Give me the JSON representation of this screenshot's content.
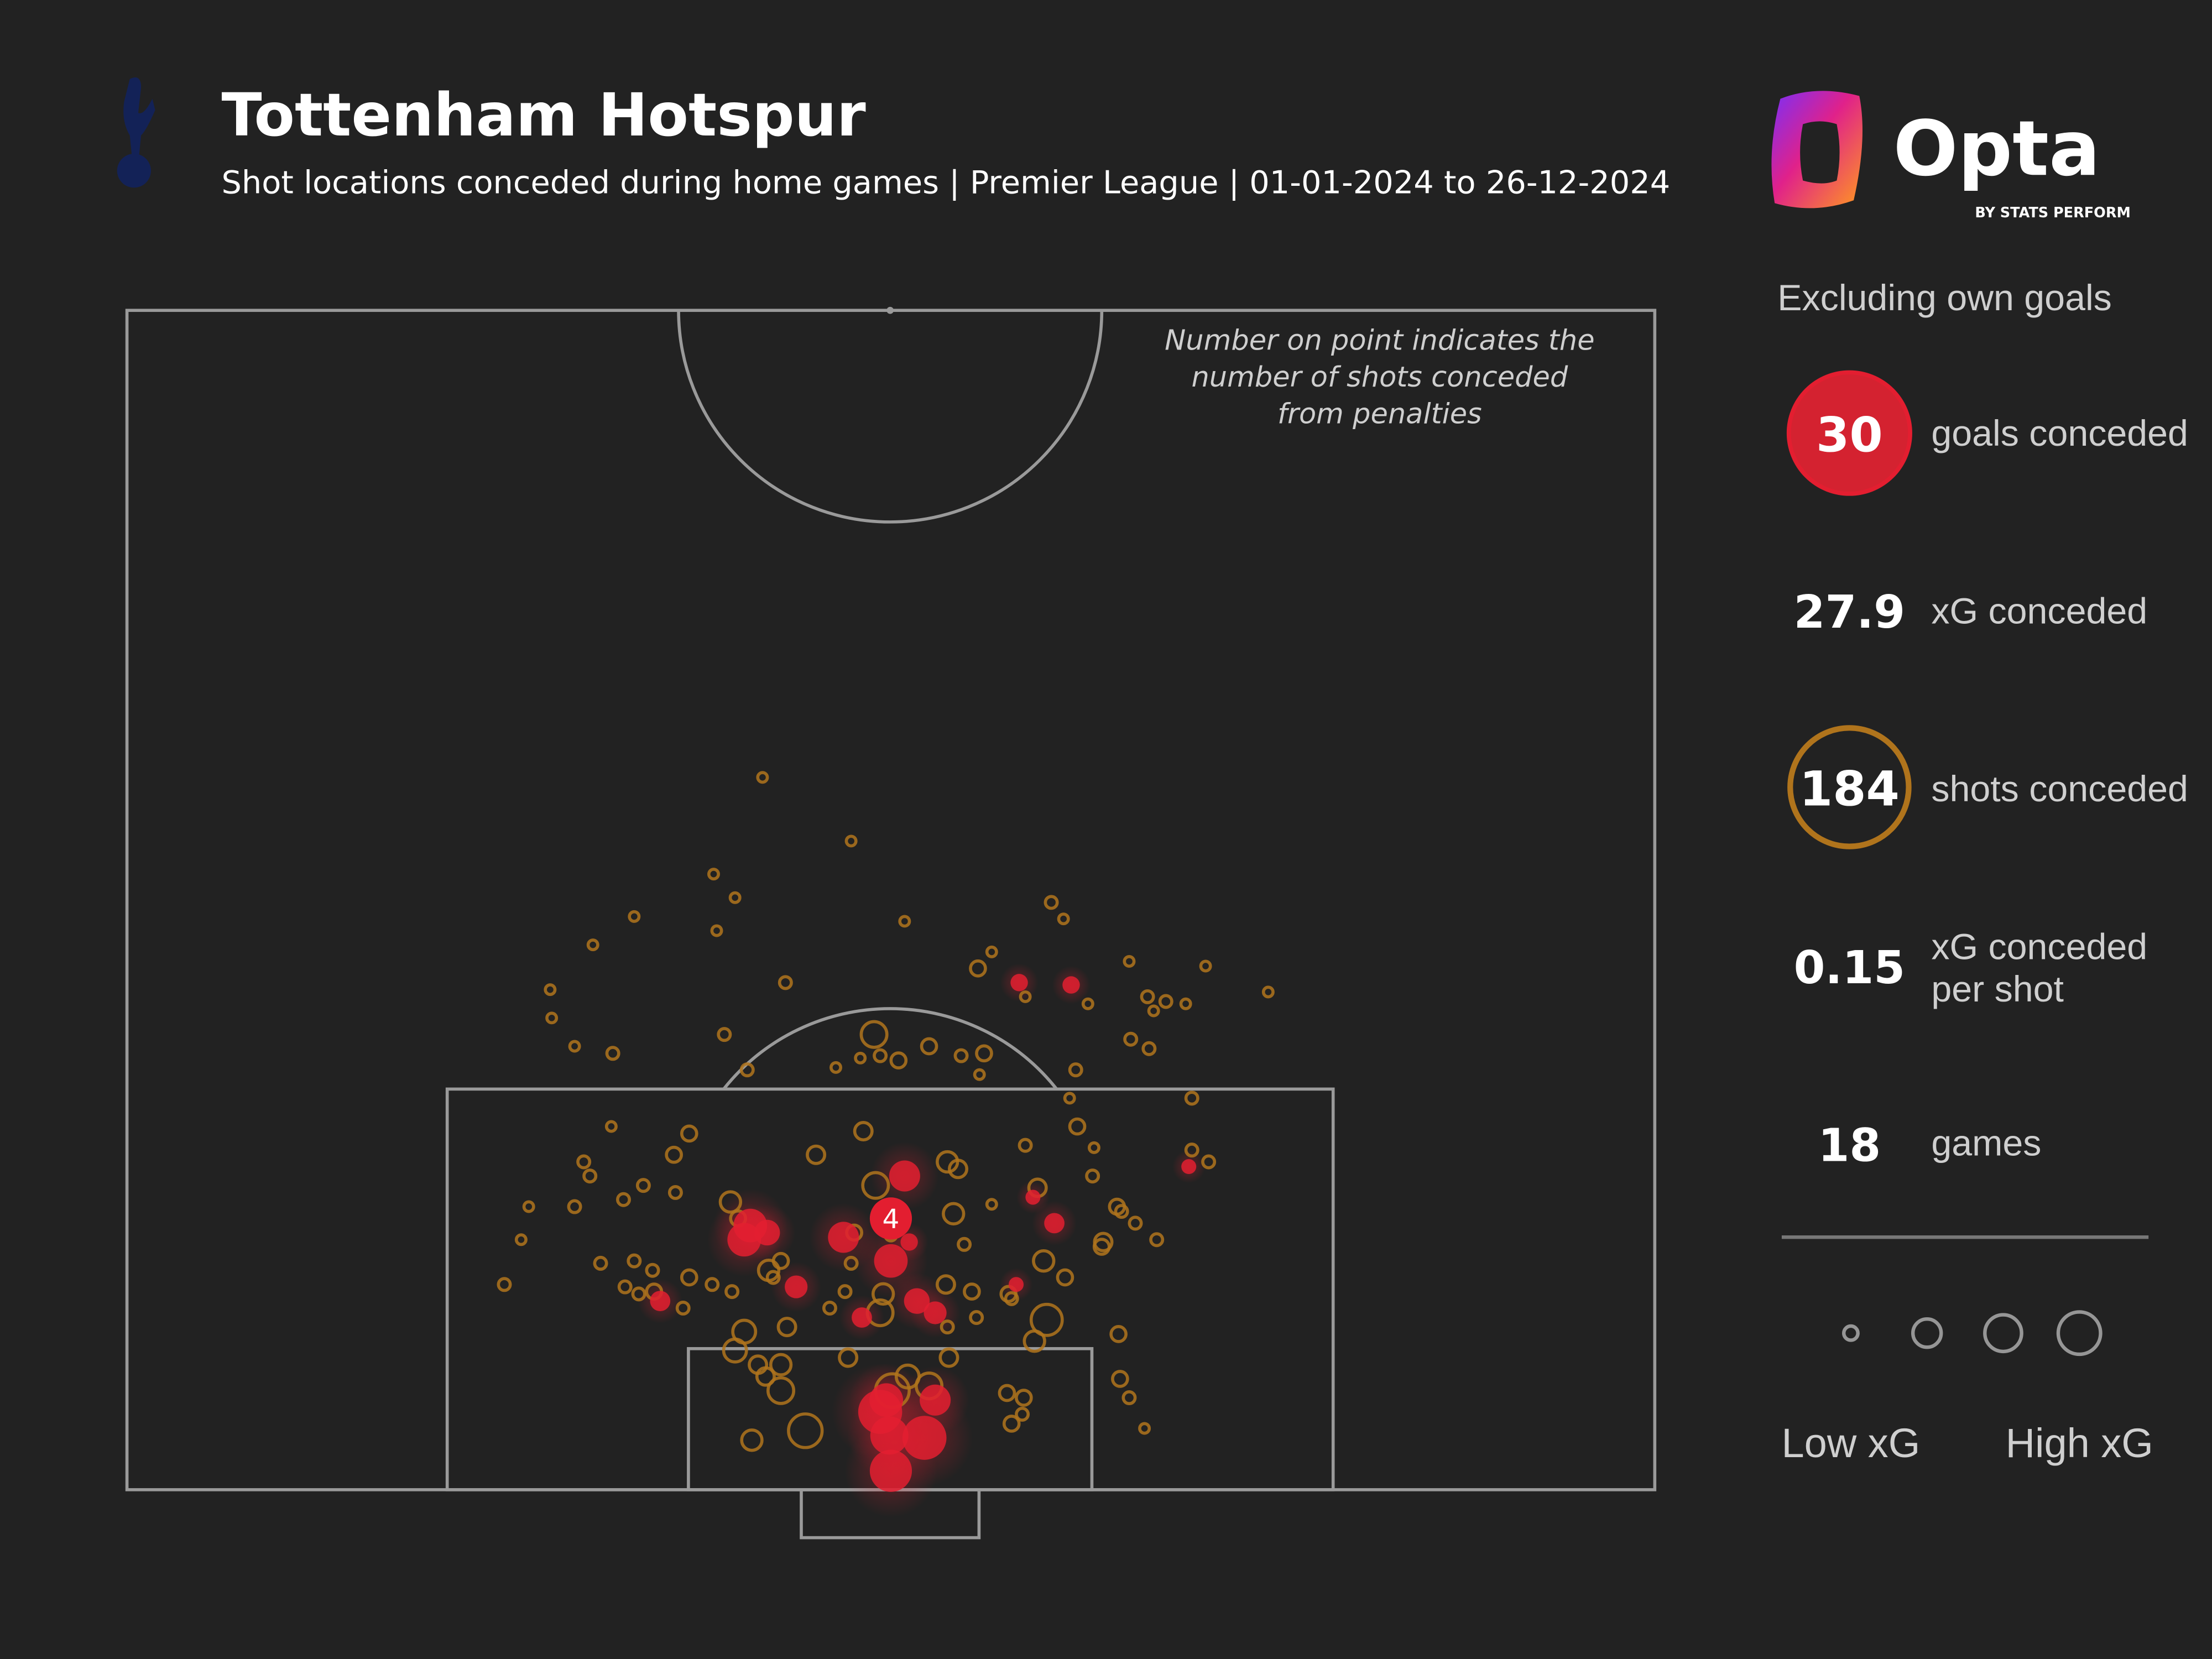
{
  "header": {
    "title": "Tottenham Hotspur",
    "subtitle": "Shot locations conceded during home games | Premier League | 01-01-2024 to 26-12-2024",
    "club_crest": "tottenham-cockerel-crest",
    "brand_logo": {
      "word": "Opta",
      "tagline": "BY STATS PERFORM"
    }
  },
  "annotation": [
    "Number on point indicates the",
    "number of shots conceded",
    "from penalties"
  ],
  "sidebar": {
    "note": "Excluding own goals",
    "stats": [
      {
        "value": "30",
        "label": "goals conceded"
      },
      {
        "value": "27.9",
        "label": "xG conceded"
      },
      {
        "value": "184",
        "label": "shots conceded"
      },
      {
        "value": "0.15",
        "label": "xG conceded",
        "label2": "per shot"
      },
      {
        "value": "18",
        "label": "games"
      }
    ],
    "legend": {
      "low": "Low xG",
      "high": "High xG"
    }
  },
  "colors": {
    "background": "#222222",
    "lines": "#9a9a9a",
    "goal": "#e31e30",
    "shot": "#b0741c"
  },
  "chart_data": {
    "type": "scatter",
    "description_units": "w = position across pitch width (0-100, left to right); d = distance from goal line in Opta length units (0-50); xg = expected goals; goal = 1 if scored",
    "size_encoding": "xG",
    "penalties": {
      "w": 50.0,
      "d": 11.5,
      "xg": 0.5,
      "goal": 1,
      "count": "4"
    },
    "shots": [
      [
        41.6,
        30.2,
        0.01,
        0
      ],
      [
        47.4,
        27.5,
        0.01,
        0
      ],
      [
        38.4,
        26.1,
        0.01,
        0
      ],
      [
        39.8,
        25.1,
        0.01,
        0
      ],
      [
        33.2,
        24.3,
        0.01,
        0
      ],
      [
        38.6,
        23.7,
        0.01,
        0
      ],
      [
        50.9,
        24.1,
        0.01,
        0
      ],
      [
        60.5,
        24.9,
        0.02,
        0
      ],
      [
        61.3,
        24.2,
        0.01,
        0
      ],
      [
        30.5,
        23.1,
        0.01,
        0
      ],
      [
        55.7,
        22.1,
        0.04,
        0
      ],
      [
        56.6,
        22.8,
        0.01,
        0
      ],
      [
        43.1,
        21.5,
        0.02,
        0
      ],
      [
        65.6,
        22.4,
        0.01,
        0
      ],
      [
        70.6,
        22.2,
        0.01,
        0
      ],
      [
        74.7,
        21.1,
        0.01,
        0
      ],
      [
        27.7,
        21.2,
        0.01,
        0
      ],
      [
        27.8,
        20.0,
        0.01,
        0
      ],
      [
        66.8,
        20.9,
        0.02,
        0
      ],
      [
        68.0,
        20.7,
        0.02,
        0
      ],
      [
        67.2,
        20.3,
        0.01,
        0
      ],
      [
        69.3,
        20.6,
        0.01,
        0
      ],
      [
        62.9,
        20.6,
        0.01,
        0
      ],
      [
        58.8,
        20.9,
        0.01,
        0
      ],
      [
        39.1,
        19.3,
        0.02,
        0
      ],
      [
        48.9,
        19.3,
        0.16,
        0
      ],
      [
        49.3,
        18.4,
        0.02,
        0
      ],
      [
        50.5,
        18.2,
        0.04,
        0
      ],
      [
        52.5,
        18.8,
        0.04,
        0
      ],
      [
        54.6,
        18.4,
        0.02,
        0
      ],
      [
        56.1,
        18.5,
        0.04,
        0
      ],
      [
        55.8,
        17.6,
        0.01,
        0
      ],
      [
        48.0,
        18.3,
        0.01,
        0
      ],
      [
        29.3,
        18.8,
        0.01,
        0
      ],
      [
        31.8,
        18.5,
        0.02,
        0
      ],
      [
        65.7,
        19.1,
        0.02,
        0
      ],
      [
        66.9,
        18.7,
        0.02,
        0
      ],
      [
        62.1,
        17.8,
        0.02,
        0
      ],
      [
        40.6,
        17.8,
        0.02,
        0
      ],
      [
        46.4,
        17.9,
        0.01,
        0
      ],
      [
        61.7,
        16.6,
        0.01,
        0
      ],
      [
        69.7,
        16.6,
        0.02,
        0
      ],
      [
        31.7,
        15.4,
        0.01,
        0
      ],
      [
        36.8,
        15.1,
        0.04,
        0
      ],
      [
        48.2,
        15.2,
        0.06,
        0
      ],
      [
        62.2,
        15.4,
        0.04,
        0
      ],
      [
        58.8,
        14.6,
        0.02,
        0
      ],
      [
        63.3,
        14.5,
        0.01,
        0
      ],
      [
        69.7,
        14.4,
        0.02,
        0
      ],
      [
        70.8,
        13.9,
        0.02,
        0
      ],
      [
        29.9,
        13.9,
        0.02,
        0
      ],
      [
        30.3,
        13.3,
        0.02,
        0
      ],
      [
        35.8,
        14.2,
        0.04,
        0
      ],
      [
        45.1,
        14.2,
        0.06,
        0
      ],
      [
        53.7,
        13.9,
        0.09,
        0
      ],
      [
        54.4,
        13.6,
        0.06,
        0
      ],
      [
        63.2,
        13.3,
        0.02,
        0
      ],
      [
        33.8,
        12.9,
        0.02,
        0
      ],
      [
        32.5,
        12.3,
        0.02,
        0
      ],
      [
        35.9,
        12.6,
        0.02,
        0
      ],
      [
        39.5,
        12.2,
        0.09,
        0
      ],
      [
        40.0,
        11.5,
        0.04,
        0
      ],
      [
        49.0,
        12.9,
        0.16,
        0
      ],
      [
        59.6,
        12.8,
        0.06,
        0
      ],
      [
        56.6,
        12.1,
        0.01,
        0
      ],
      [
        54.1,
        11.7,
        0.09,
        0
      ],
      [
        64.8,
        12.0,
        0.04,
        0
      ],
      [
        65.1,
        11.8,
        0.02,
        0
      ],
      [
        66.0,
        11.3,
        0.02,
        0
      ],
      [
        26.3,
        12.0,
        0.01,
        0
      ],
      [
        29.3,
        12.0,
        0.02,
        0
      ],
      [
        25.8,
        10.6,
        0.01,
        0
      ],
      [
        67.4,
        10.6,
        0.02,
        0
      ],
      [
        63.9,
        10.5,
        0.06,
        0
      ],
      [
        63.8,
        10.3,
        0.04,
        0
      ],
      [
        54.8,
        10.4,
        0.02,
        0
      ],
      [
        47.6,
        10.9,
        0.04,
        0
      ],
      [
        50.0,
        10.8,
        0.02,
        0
      ],
      [
        47.4,
        9.6,
        0.02,
        0
      ],
      [
        24.7,
        8.7,
        0.02,
        0
      ],
      [
        31.0,
        9.6,
        0.02,
        0
      ],
      [
        33.2,
        9.7,
        0.02,
        0
      ],
      [
        34.4,
        9.3,
        0.02,
        0
      ],
      [
        36.8,
        9.0,
        0.04,
        0
      ],
      [
        38.3,
        8.7,
        0.02,
        0
      ],
      [
        39.6,
        8.4,
        0.02,
        0
      ],
      [
        42.0,
        9.3,
        0.09,
        0
      ],
      [
        42.8,
        9.7,
        0.04,
        0
      ],
      [
        42.3,
        9.0,
        0.02,
        0
      ],
      [
        60.0,
        9.7,
        0.09,
        0
      ],
      [
        61.4,
        9.0,
        0.04,
        0
      ],
      [
        32.6,
        8.6,
        0.02,
        0
      ],
      [
        33.5,
        8.3,
        0.02,
        0
      ],
      [
        34.5,
        8.4,
        0.04,
        0
      ],
      [
        36.4,
        7.7,
        0.02,
        0
      ],
      [
        47.0,
        8.4,
        0.02,
        0
      ],
      [
        46.0,
        7.7,
        0.02,
        0
      ],
      [
        49.3,
        7.5,
        0.16,
        0
      ],
      [
        49.5,
        8.3,
        0.09,
        0
      ],
      [
        53.6,
        8.7,
        0.06,
        0
      ],
      [
        55.3,
        8.4,
        0.04,
        0
      ],
      [
        55.6,
        7.3,
        0.02,
        0
      ],
      [
        57.9,
        8.1,
        0.02,
        0
      ],
      [
        57.7,
        8.3,
        0.04,
        0
      ],
      [
        60.2,
        7.2,
        0.25,
        0
      ],
      [
        59.4,
        6.3,
        0.09,
        0
      ],
      [
        53.7,
        6.9,
        0.02,
        0
      ],
      [
        40.4,
        6.7,
        0.12,
        0
      ],
      [
        39.8,
        5.9,
        0.12,
        0
      ],
      [
        41.3,
        5.3,
        0.06,
        0
      ],
      [
        41.8,
        4.8,
        0.06,
        0
      ],
      [
        42.8,
        5.3,
        0.09,
        0
      ],
      [
        43.2,
        6.9,
        0.06,
        0
      ],
      [
        47.2,
        5.6,
        0.06,
        0
      ],
      [
        42.8,
        4.2,
        0.16,
        0
      ],
      [
        53.8,
        5.6,
        0.06,
        0
      ],
      [
        52.5,
        4.4,
        0.16,
        0
      ],
      [
        50.1,
        4.2,
        0.3,
        0
      ],
      [
        51.1,
        4.8,
        0.12,
        0
      ],
      [
        57.6,
        4.1,
        0.04,
        0
      ],
      [
        58.7,
        3.9,
        0.04,
        0
      ],
      [
        58.6,
        3.2,
        0.02,
        0
      ],
      [
        57.9,
        2.8,
        0.04,
        0
      ],
      [
        64.9,
        6.6,
        0.04,
        0
      ],
      [
        65.0,
        4.7,
        0.04,
        0
      ],
      [
        65.6,
        3.9,
        0.02,
        0
      ],
      [
        66.6,
        2.6,
        0.01,
        0
      ],
      [
        40.9,
        2.1,
        0.09,
        0
      ],
      [
        44.4,
        2.5,
        0.3,
        0
      ],
      [
        58.4,
        21.5,
        0.06,
        1
      ],
      [
        61.8,
        21.4,
        0.06,
        1
      ],
      [
        69.5,
        13.7,
        0.04,
        1
      ],
      [
        50.9,
        13.3,
        0.25,
        1
      ],
      [
        46.9,
        10.7,
        0.25,
        1
      ],
      [
        40.8,
        11.2,
        0.3,
        1
      ],
      [
        40.4,
        10.6,
        0.3,
        1
      ],
      [
        41.9,
        10.9,
        0.16,
        1
      ],
      [
        50.0,
        9.7,
        0.3,
        1
      ],
      [
        51.2,
        10.5,
        0.06,
        1
      ],
      [
        43.8,
        8.6,
        0.12,
        1
      ],
      [
        34.9,
        8.0,
        0.09,
        1
      ],
      [
        48.1,
        7.3,
        0.09,
        1
      ],
      [
        51.7,
        8.0,
        0.16,
        1
      ],
      [
        52.9,
        7.5,
        0.12,
        1
      ],
      [
        60.7,
        11.3,
        0.09,
        1
      ],
      [
        59.3,
        12.4,
        0.04,
        1
      ],
      [
        58.2,
        8.7,
        0.04,
        1
      ],
      [
        49.3,
        3.3,
        0.55,
        1
      ],
      [
        49.7,
        3.8,
        0.3,
        1
      ],
      [
        49.9,
        2.3,
        0.4,
        1
      ],
      [
        52.2,
        2.2,
        0.55,
        1
      ],
      [
        50.0,
        0.8,
        0.5,
        1
      ],
      [
        52.9,
        3.8,
        0.25,
        1
      ]
    ],
    "legend_sizes_xg": [
      0.01,
      0.1,
      0.2,
      0.3
    ]
  }
}
